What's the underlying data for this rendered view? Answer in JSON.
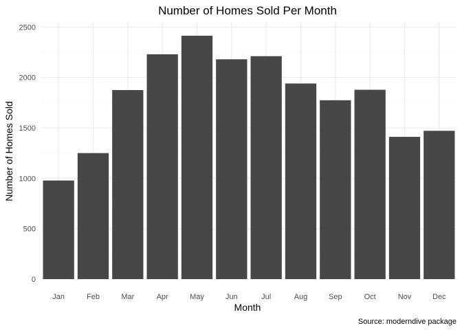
{
  "chart_data": {
    "type": "bar",
    "title": "Number of Homes Sold Per Month",
    "xlabel": "Month",
    "ylabel": "Number of Homes Sold",
    "caption": "Source: moderndive package",
    "categories": [
      "Jan",
      "Feb",
      "Mar",
      "Apr",
      "May",
      "Jun",
      "Jul",
      "Aug",
      "Sep",
      "Oct",
      "Nov",
      "Dec"
    ],
    "values": [
      978,
      1250,
      1875,
      2230,
      2414,
      2180,
      2211,
      1940,
      1774,
      1878,
      1411,
      1471
    ],
    "ylim": [
      0,
      2550
    ],
    "yticks": [
      0,
      500,
      1000,
      1500,
      2000,
      2500
    ],
    "grid": true,
    "legend": "none",
    "bar_color": "#474747"
  }
}
